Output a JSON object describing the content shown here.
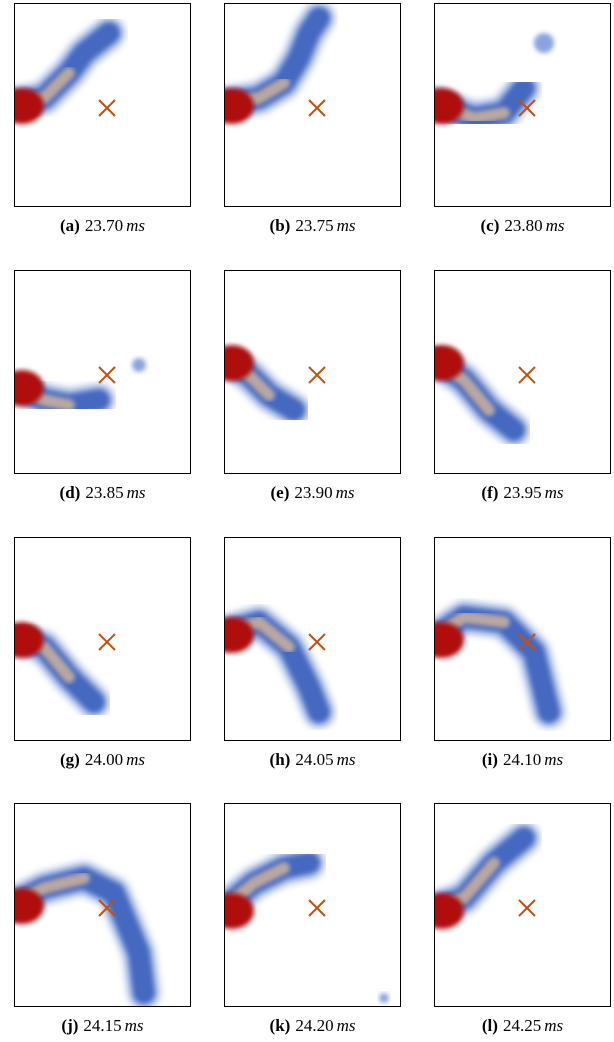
{
  "panels": [
    {
      "label": "(a)",
      "time": "23.70",
      "unit": "ms"
    },
    {
      "label": "(b)",
      "time": "23.75",
      "unit": "ms"
    },
    {
      "label": "(c)",
      "time": "23.80",
      "unit": "ms"
    },
    {
      "label": "(d)",
      "time": "23.85",
      "unit": "ms"
    },
    {
      "label": "(e)",
      "time": "23.90",
      "unit": "ms"
    },
    {
      "label": "(f)",
      "time": "23.95",
      "unit": "ms"
    },
    {
      "label": "(g)",
      "time": "24.00",
      "unit": "ms"
    },
    {
      "label": "(h)",
      "time": "24.05",
      "unit": "ms"
    },
    {
      "label": "(i)",
      "time": "24.10",
      "unit": "ms"
    },
    {
      "label": "(j)",
      "time": "24.15",
      "unit": "ms"
    },
    {
      "label": "(k)",
      "time": "24.20",
      "unit": "ms"
    },
    {
      "label": "(l)",
      "time": "24.25",
      "unit": "ms"
    }
  ]
}
